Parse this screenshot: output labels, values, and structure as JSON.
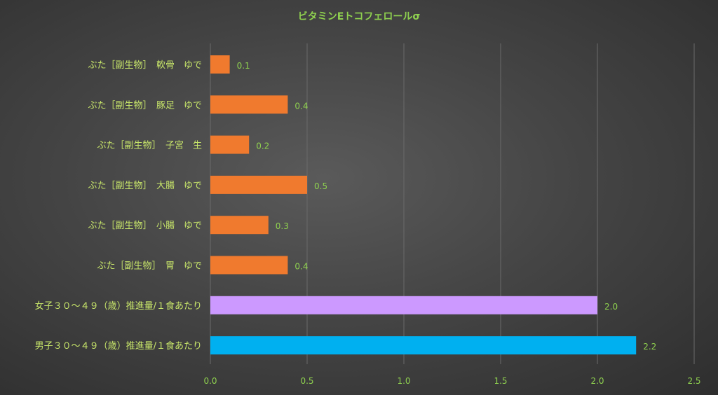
{
  "chart_data": {
    "type": "bar",
    "orientation": "horizontal",
    "title": "ビタミンEトコフェロールσ",
    "categories": [
      "ぶた［副生物］　軟骨　ゆで",
      "ぶた［副生物］　豚足　ゆで",
      "ぶた［副生物］　子宮　生",
      "ぶた［副生物］　大腸　ゆで",
      "ぶた［副生物］　小腸　ゆで",
      "ぶた［副生物］　胃　ゆで",
      "女子３０～４９（歳）推進量/１食あたり",
      "男子３０～４９（歳）推進量/１食あたり"
    ],
    "values": [
      0.1,
      0.4,
      0.2,
      0.5,
      0.3,
      0.4,
      2.0,
      2.2
    ],
    "value_labels": [
      "0.1",
      "0.4",
      "0.2",
      "0.5",
      "0.3",
      "0.4",
      "2.0",
      "2.2"
    ],
    "bar_colors": [
      "#f07a2e",
      "#f07a2e",
      "#f07a2e",
      "#f07a2e",
      "#f07a2e",
      "#f07a2e",
      "#cc99ff",
      "#00b0f0"
    ],
    "xlim": [
      0,
      2.5
    ],
    "xticks": [
      0.0,
      0.5,
      1.0,
      1.5,
      2.0,
      2.5
    ],
    "xtick_labels": [
      "0.0",
      "0.5",
      "1.0",
      "1.5",
      "2.0",
      "2.5"
    ],
    "grid": true,
    "legend": false
  },
  "colors": {
    "text_accent": "#8fd14f",
    "category_text": "#c8e66a",
    "gridline": "#6a6a6a"
  }
}
